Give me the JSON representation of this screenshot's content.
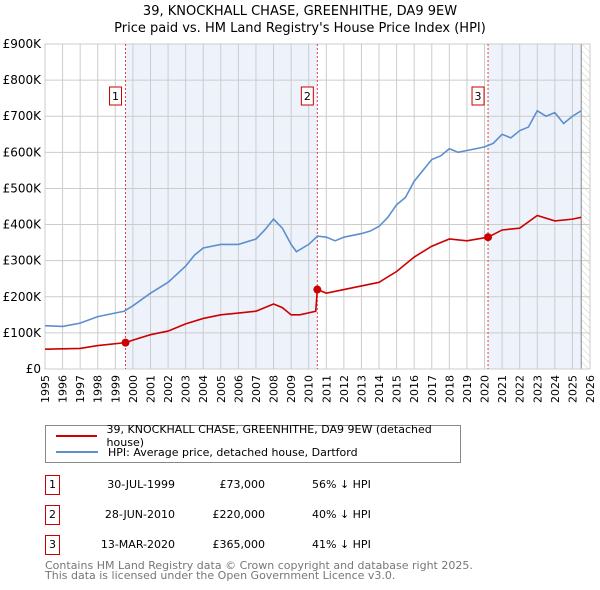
{
  "title": "39, KNOCKHALL CHASE, GREENHITHE, DA9 9EW",
  "subtitle": "Price paid vs. HM Land Registry's House Price Index (HPI)",
  "colors": {
    "property": "#cc0000",
    "hpi": "#5b8fd0",
    "shade": "#eef3fb"
  },
  "chart_data": {
    "type": "line",
    "xlim": [
      1995,
      2026
    ],
    "ylim": [
      0,
      900000
    ],
    "x_ticks": [
      "1995",
      "1996",
      "1997",
      "1998",
      "1999",
      "2000",
      "2001",
      "2002",
      "2003",
      "2004",
      "2005",
      "2006",
      "2007",
      "2008",
      "2009",
      "2010",
      "2011",
      "2012",
      "2013",
      "2014",
      "2015",
      "2016",
      "2017",
      "2018",
      "2019",
      "2020",
      "2021",
      "2022",
      "2023",
      "2024",
      "2025",
      "2026"
    ],
    "y_ticks": [
      {
        "v": 0,
        "label": "£0"
      },
      {
        "v": 100000,
        "label": "£100K"
      },
      {
        "v": 200000,
        "label": "£200K"
      },
      {
        "v": 300000,
        "label": "£300K"
      },
      {
        "v": 400000,
        "label": "£400K"
      },
      {
        "v": 500000,
        "label": "£500K"
      },
      {
        "v": 600000,
        "label": "£600K"
      },
      {
        "v": 700000,
        "label": "£700K"
      },
      {
        "v": 800000,
        "label": "£800K"
      },
      {
        "v": 900000,
        "label": "£900K"
      }
    ],
    "series": [
      {
        "name": "39, KNOCKHALL CHASE, GREENHITHE, DA9 9EW (detached house)",
        "color": "#cc0000",
        "x": [
          1995,
          1997,
          1998,
          1999.58,
          2000,
          2001,
          2002,
          2003,
          2004,
          2005,
          2006,
          2007,
          2008,
          2008.5,
          2009,
          2009.5,
          2010.4,
          2010.49,
          2011,
          2012,
          2013,
          2014,
          2015,
          2016,
          2017,
          2018,
          2019,
          2020.2,
          2021,
          2022,
          2023,
          2024,
          2025,
          2025.5
        ],
        "y": [
          55000,
          57000,
          65000,
          73000,
          80000,
          95000,
          105000,
          125000,
          140000,
          150000,
          155000,
          160000,
          180000,
          170000,
          150000,
          150000,
          160000,
          220000,
          210000,
          220000,
          230000,
          240000,
          270000,
          310000,
          340000,
          360000,
          355000,
          365000,
          385000,
          390000,
          425000,
          410000,
          415000,
          420000
        ]
      },
      {
        "name": "HPI: Average price, detached house, Dartford",
        "color": "#5b8fd0",
        "x": [
          1995,
          1996,
          1997,
          1998,
          1999,
          1999.5,
          2000,
          2001,
          2002,
          2003,
          2003.5,
          2004,
          2005,
          2006,
          2007,
          2007.5,
          2008,
          2008.5,
          2009,
          2009.3,
          2010,
          2010.5,
          2011,
          2011.5,
          2012,
          2013,
          2013.5,
          2014,
          2014.5,
          2015,
          2015.5,
          2016,
          2016.5,
          2017,
          2017.5,
          2018,
          2018.5,
          2019,
          2019.5,
          2020,
          2020.5,
          2021,
          2021.5,
          2022,
          2022.5,
          2023,
          2023.5,
          2024,
          2024.5,
          2025,
          2025.5
        ],
        "y": [
          120000,
          118000,
          127000,
          145000,
          155000,
          160000,
          175000,
          210000,
          240000,
          285000,
          315000,
          335000,
          345000,
          345000,
          360000,
          385000,
          415000,
          390000,
          345000,
          325000,
          345000,
          368000,
          365000,
          355000,
          365000,
          375000,
          382000,
          395000,
          420000,
          455000,
          475000,
          520000,
          550000,
          580000,
          590000,
          610000,
          600000,
          605000,
          610000,
          615000,
          625000,
          650000,
          640000,
          660000,
          670000,
          715000,
          700000,
          710000,
          680000,
          700000,
          715000
        ]
      }
    ],
    "sales": [
      {
        "n": "1",
        "date": "30-JUL-1999",
        "x": 1999.58,
        "price": "£73,000",
        "value": 73000,
        "hpi": "56% ↓ HPI"
      },
      {
        "n": "2",
        "date": "28-JUN-2010",
        "x": 2010.49,
        "price": "£220,000",
        "value": 220000,
        "hpi": "40% ↓ HPI"
      },
      {
        "n": "3",
        "date": "13-MAR-2020",
        "x": 2020.2,
        "price": "£365,000",
        "value": 365000,
        "hpi": "41% ↓ HPI"
      }
    ],
    "data_end": 2025.5,
    "grid": true
  },
  "footer": [
    "Contains HM Land Registry data © Crown copyright and database right 2025.",
    "This data is licensed under the Open Government Licence v3.0."
  ]
}
